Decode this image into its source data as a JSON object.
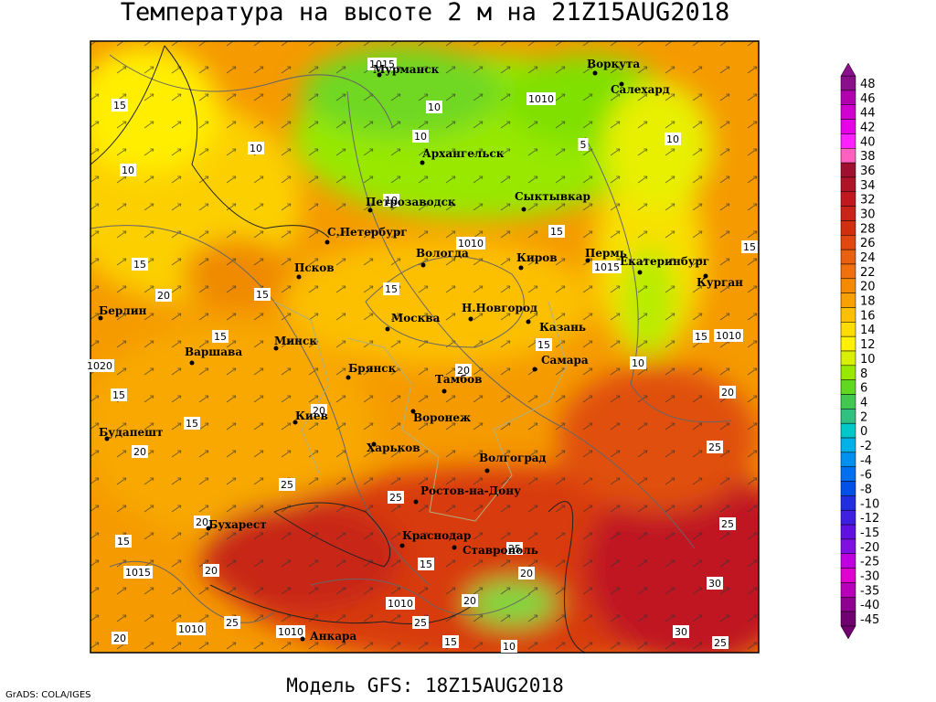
{
  "header": {
    "title": "Температура на высоте 2 м на 21Z15AUG2018"
  },
  "footer": {
    "model": "Модель GFS: 18Z15AUG2018",
    "credit": "GrADS: COLA/IGES"
  },
  "map": {
    "cities": [
      "Мурманск",
      "Воркута",
      "Салехард",
      "Архангельск",
      "Сыктывкар",
      "Петрозаводск",
      "С.Петербург",
      "Вологда",
      "Киров",
      "Пермь",
      "Екатеринбург",
      "Курган",
      "Псков",
      "Берлин",
      "Москва",
      "Н.Новгород",
      "Казань",
      "Минск",
      "Варшава",
      "Самара",
      "Брянск",
      "Тамбов",
      "Воронеж",
      "Киев",
      "Будапешт",
      "Харьков",
      "Волгоград",
      "Ростов-на-Дону",
      "Бухарест",
      "Краснодар",
      "Ставрополь",
      "Анкара"
    ],
    "contour_labels": [
      "1015",
      "10",
      "1010",
      "10",
      "5",
      "10",
      "10",
      "15",
      "10",
      "10",
      "15",
      "1010",
      "15",
      "15",
      "1015",
      "20",
      "15",
      "15",
      "15",
      "15",
      "1010",
      "15",
      "1020",
      "10",
      "20",
      "15",
      "20",
      "15",
      "20",
      "20",
      "25",
      "25",
      "25",
      "20",
      "25",
      "15",
      "25",
      "1015",
      "20",
      "15",
      "20",
      "30",
      "1010",
      "20",
      "1010",
      "1010",
      "25",
      "30",
      "25",
      "20",
      "15",
      "10",
      "25"
    ]
  },
  "colorbar": {
    "labels": [
      "48",
      "46",
      "44",
      "42",
      "40",
      "38",
      "36",
      "34",
      "32",
      "30",
      "28",
      "26",
      "24",
      "22",
      "20",
      "18",
      "16",
      "14",
      "12",
      "10",
      "8",
      "6",
      "4",
      "2",
      "0",
      "-2",
      "-4",
      "-6",
      "-8",
      "-10",
      "-12",
      "-15",
      "-20",
      "-25",
      "-30",
      "-35",
      "-40",
      "-45"
    ],
    "colors": [
      "#8a0f8a",
      "#b000b0",
      "#d000d0",
      "#e800e8",
      "#ff20ff",
      "#ff60c0",
      "#a01030",
      "#b01428",
      "#c01a20",
      "#c82418",
      "#d03010",
      "#e04810",
      "#e86010",
      "#f07010",
      "#f58a00",
      "#f8a000",
      "#fcc000",
      "#ffdc00",
      "#fff000",
      "#d8f000",
      "#98e800",
      "#60d820",
      "#40c850",
      "#30c080",
      "#00c8c8",
      "#00b0e8",
      "#0090f0",
      "#0070f0",
      "#0050e8",
      "#2030e0",
      "#4020e0",
      "#6010e0",
      "#8010e0",
      "#c000e0",
      "#e000d0",
      "#b800b8",
      "#900090",
      "#700070"
    ]
  }
}
